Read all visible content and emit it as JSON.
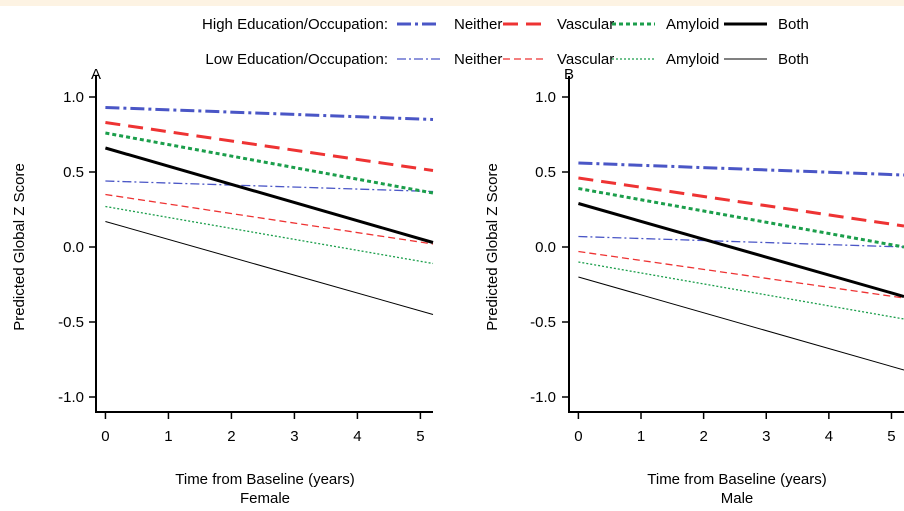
{
  "colors": {
    "Neither": "#4a56c6",
    "Vascular": "#ee3333",
    "Amyloid": "#1b9e4b",
    "Both": "#000000",
    "top_band": "#fdf3e3"
  },
  "legend": {
    "rows": [
      {
        "id": "high",
        "label": "High Education/Occupation:",
        "entries": [
          "Neither",
          "Vascular",
          "Amyloid",
          "Both"
        ]
      },
      {
        "id": "low",
        "label": "Low Education/Occupation:",
        "entries": [
          "Neither",
          "Vascular",
          "Amyloid",
          "Both"
        ]
      }
    ]
  },
  "chart_data": [
    {
      "type": "line",
      "panel": "A",
      "xlabel": "Time from Baseline (years)",
      "xlabel_sub": "Female",
      "ylabel": "Predicted Global Z Score",
      "xlim": [
        -0.15,
        5.2
      ],
      "ylim": [
        -1.1,
        1.1
      ],
      "xticks": [
        0,
        1,
        2,
        3,
        4,
        5
      ],
      "yticks": [
        1.0,
        0.5,
        0.0,
        -0.5,
        -1.0
      ],
      "ytick_labels": [
        "1.0",
        "0.5",
        "0.0",
        "-0.5",
        "-1.0"
      ],
      "grid": false,
      "series": [
        {
          "name": "High Education/Occupation: Neither",
          "group": "high",
          "color_key": "Neither",
          "x": [
            0,
            5.2
          ],
          "y": [
            0.93,
            0.85
          ]
        },
        {
          "name": "High Education/Occupation: Vascular",
          "group": "high",
          "color_key": "Vascular",
          "x": [
            0,
            5.2
          ],
          "y": [
            0.83,
            0.51
          ]
        },
        {
          "name": "High Education/Occupation: Amyloid",
          "group": "high",
          "color_key": "Amyloid",
          "x": [
            0,
            5.2
          ],
          "y": [
            0.76,
            0.36
          ]
        },
        {
          "name": "High Education/Occupation: Both",
          "group": "high",
          "color_key": "Both",
          "x": [
            0,
            5.2
          ],
          "y": [
            0.66,
            0.03
          ]
        },
        {
          "name": "Low Education/Occupation: Neither",
          "group": "low",
          "color_key": "Neither",
          "x": [
            0,
            5.2
          ],
          "y": [
            0.44,
            0.37
          ]
        },
        {
          "name": "Low Education/Occupation: Vascular",
          "group": "low",
          "color_key": "Vascular",
          "x": [
            0,
            5.2
          ],
          "y": [
            0.35,
            0.02
          ]
        },
        {
          "name": "Low Education/Occupation: Amyloid",
          "group": "low",
          "color_key": "Amyloid",
          "x": [
            0,
            5.2
          ],
          "y": [
            0.27,
            -0.11
          ]
        },
        {
          "name": "Low Education/Occupation: Both",
          "group": "low",
          "color_key": "Both",
          "x": [
            0,
            5.2
          ],
          "y": [
            0.17,
            -0.45
          ]
        }
      ]
    },
    {
      "type": "line",
      "panel": "B",
      "xlabel": "Time from Baseline (years)",
      "xlabel_sub": "Male",
      "ylabel": "Predicted Global Z Score",
      "xlim": [
        -0.15,
        5.2
      ],
      "ylim": [
        -1.1,
        1.1
      ],
      "xticks": [
        0,
        1,
        2,
        3,
        4,
        5
      ],
      "yticks": [
        1.0,
        0.5,
        0.0,
        -0.5,
        -1.0
      ],
      "ytick_labels": [
        "1.0",
        "0.5",
        "0.0",
        "-0.5",
        "-1.0"
      ],
      "grid": false,
      "series": [
        {
          "name": "High Education/Occupation: Neither",
          "group": "high",
          "color_key": "Neither",
          "x": [
            0,
            5.2
          ],
          "y": [
            0.56,
            0.48
          ]
        },
        {
          "name": "High Education/Occupation: Vascular",
          "group": "high",
          "color_key": "Vascular",
          "x": [
            0,
            5.2
          ],
          "y": [
            0.46,
            0.14
          ]
        },
        {
          "name": "High Education/Occupation: Amyloid",
          "group": "high",
          "color_key": "Amyloid",
          "x": [
            0,
            5.2
          ],
          "y": [
            0.39,
            0.0
          ]
        },
        {
          "name": "High Education/Occupation: Both",
          "group": "high",
          "color_key": "Both",
          "x": [
            0,
            5.2
          ],
          "y": [
            0.29,
            -0.33
          ]
        },
        {
          "name": "Low Education/Occupation: Neither",
          "group": "low",
          "color_key": "Neither",
          "x": [
            0,
            5.2
          ],
          "y": [
            0.07,
            0.0
          ]
        },
        {
          "name": "Low Education/Occupation: Vascular",
          "group": "low",
          "color_key": "Vascular",
          "x": [
            0,
            5.2
          ],
          "y": [
            -0.03,
            -0.34
          ]
        },
        {
          "name": "Low Education/Occupation: Amyloid",
          "group": "low",
          "color_key": "Amyloid",
          "x": [
            0,
            5.2
          ],
          "y": [
            -0.1,
            -0.48
          ]
        },
        {
          "name": "Low Education/Occupation: Both",
          "group": "low",
          "color_key": "Both",
          "x": [
            0,
            5.2
          ],
          "y": [
            -0.2,
            -0.82
          ]
        }
      ]
    }
  ]
}
